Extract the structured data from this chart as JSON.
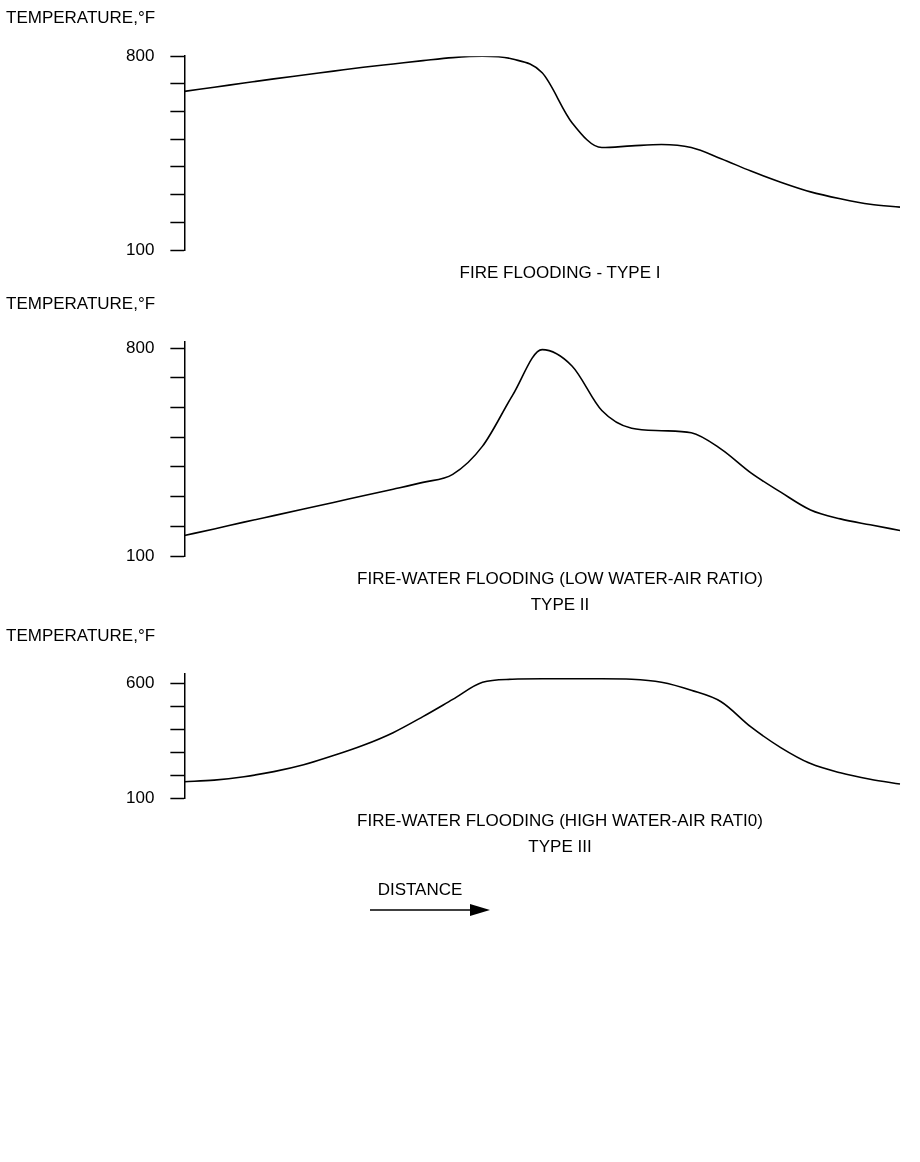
{
  "chart_data": [
    {
      "type": "line",
      "ylabel": "TEMPERATURE,°F",
      "tick_labels": "y",
      "marker": "none",
      "color": "#000000",
      "categories": [
        null,
        null,
        null,
        null,
        null,
        null,
        null,
        null,
        null,
        null,
        null,
        null,
        null,
        null,
        null,
        null,
        null,
        null,
        null,
        null,
        null,
        null,
        null,
        null,
        null
      ],
      "values": [
        673,
        688,
        703,
        718,
        732,
        746,
        760,
        772,
        784,
        795,
        800,
        790,
        740,
        560,
        470,
        476,
        481,
        470,
        430,
        385,
        345,
        310,
        285,
        265,
        255
      ],
      "ylim": [
        100,
        800
      ],
      "yticks": [
        {
          "value": 100,
          "label": "100"
        },
        {
          "value": 200,
          "label": null
        },
        {
          "value": 300,
          "label": null
        },
        {
          "value": 400,
          "label": null
        },
        {
          "value": 500,
          "label": null
        },
        {
          "value": 600,
          "label": null
        },
        {
          "value": 700,
          "label": null
        },
        {
          "value": 800,
          "label": "800"
        }
      ],
      "annotations": [
        "FIRE FLOODING - TYPE I"
      ]
    },
    {
      "type": "line",
      "ylabel": "TEMPERATURE,°F",
      "tick_labels": "y",
      "marker": "none",
      "color": "#000000",
      "categories": [
        null,
        null,
        null,
        null,
        null,
        null,
        null,
        null,
        null,
        null,
        null,
        null,
        null,
        null,
        null,
        null,
        null,
        null,
        null,
        null,
        null,
        null,
        null,
        null,
        null
      ],
      "values": [
        169,
        191,
        214,
        236,
        258,
        280,
        303,
        325,
        348,
        375,
        470,
        640,
        795,
        740,
        590,
        530,
        522,
        515,
        460,
        380,
        315,
        255,
        225,
        205,
        186
      ],
      "ylim": [
        100,
        820
      ],
      "yticks": [
        {
          "value": 100,
          "label": "100"
        },
        {
          "value": 200,
          "label": null
        },
        {
          "value": 300,
          "label": null
        },
        {
          "value": 400,
          "label": null
        },
        {
          "value": 500,
          "label": null
        },
        {
          "value": 600,
          "label": null
        },
        {
          "value": 700,
          "label": null
        },
        {
          "value": 800,
          "label": "800"
        }
      ],
      "annotations": [
        "FIRE-WATER FLOODING (LOW WATER-AIR RATIO)",
        "TYPE II"
      ]
    },
    {
      "type": "line",
      "ylabel": "TEMPERATURE,°F",
      "xlabel": "DISTANCE",
      "tick_labels": "y",
      "marker": "none",
      "color": "#000000",
      "categories": [
        null,
        null,
        null,
        null,
        null,
        null,
        null,
        null,
        null,
        null,
        null,
        null,
        null,
        null,
        null,
        null,
        null,
        null,
        null,
        null,
        null,
        null,
        null,
        null,
        null
      ],
      "values": [
        171,
        178,
        193,
        215,
        245,
        285,
        330,
        385,
        455,
        530,
        605,
        618,
        620,
        620,
        620,
        618,
        605,
        570,
        520,
        410,
        320,
        250,
        210,
        182,
        161
      ],
      "ylim": [
        100,
        640
      ],
      "yticks": [
        {
          "value": 100,
          "label": "100"
        },
        {
          "value": 200,
          "label": null
        },
        {
          "value": 300,
          "label": null
        },
        {
          "value": 400,
          "label": null
        },
        {
          "value": 500,
          "label": null
        },
        {
          "value": 600,
          "label": "600"
        }
      ],
      "annotations": [
        "FIRE-WATER FLOODING (HIGH WATER-AIR RATI0)",
        "TYPE III"
      ]
    }
  ]
}
